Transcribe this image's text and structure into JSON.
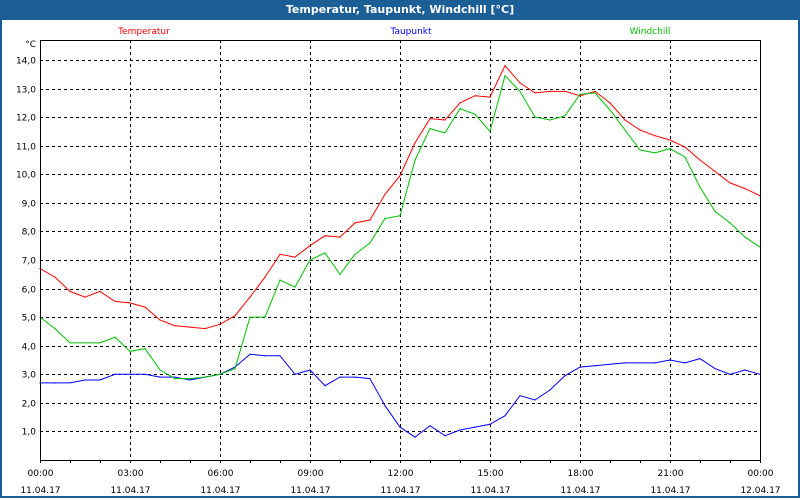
{
  "window": {
    "title": "Temperatur, Taupunkt, Windchill [°C]"
  },
  "chart_data": {
    "type": "line",
    "title": "Temperatur, Taupunkt, Windchill [°C]",
    "ylabel": "°C",
    "xlabel": "",
    "ylim": [
      0,
      14.7
    ],
    "xlim_hours": [
      0,
      24
    ],
    "grid": true,
    "legend_placement": "top",
    "y_ticks": [
      1,
      2,
      3,
      4,
      5,
      6,
      7,
      8,
      9,
      10,
      11,
      12,
      13,
      14
    ],
    "y_tick_labels": [
      "1,0",
      "2,0",
      "3,0",
      "4,0",
      "5,0",
      "6,0",
      "7,0",
      "8,0",
      "9,0",
      "10,0",
      "11,0",
      "12,0",
      "13,0",
      "14,0"
    ],
    "x_ticks_hours": [
      0,
      3,
      6,
      9,
      12,
      15,
      18,
      21,
      24
    ],
    "x_tick_labels": [
      {
        "time": "00:00",
        "date": "11.04.17"
      },
      {
        "time": "03:00",
        "date": "11.04.17"
      },
      {
        "time": "06:00",
        "date": "11.04.17"
      },
      {
        "time": "09:00",
        "date": "11.04.17"
      },
      {
        "time": "12:00",
        "date": "11.04.17"
      },
      {
        "time": "15:00",
        "date": "11.04.17"
      },
      {
        "time": "18:00",
        "date": "11.04.17"
      },
      {
        "time": "21:00",
        "date": "11.04.17"
      },
      {
        "time": "00:00",
        "date": "12.04.17"
      }
    ],
    "x_hours": [
      0,
      0.5,
      1,
      1.5,
      2,
      2.5,
      3,
      3.5,
      4,
      4.5,
      5,
      5.5,
      6,
      6.5,
      7,
      7.5,
      8,
      8.5,
      9,
      9.5,
      10,
      10.5,
      11,
      11.5,
      12,
      12.5,
      13,
      13.5,
      14,
      14.5,
      15,
      15.5,
      16,
      16.5,
      17,
      17.5,
      18,
      18.5,
      19,
      19.5,
      20,
      20.5,
      21,
      21.5,
      22,
      22.5,
      23,
      23.5,
      24
    ],
    "series": [
      {
        "name": "Temperatur",
        "color": "#ff0000",
        "values": [
          6.7,
          6.4,
          5.9,
          5.7,
          5.9,
          5.55,
          5.5,
          5.35,
          4.9,
          4.7,
          4.65,
          4.6,
          4.75,
          5.05,
          5.7,
          6.4,
          7.2,
          7.1,
          7.5,
          7.85,
          7.8,
          8.3,
          8.4,
          9.3,
          9.95,
          11.1,
          11.95,
          11.9,
          12.5,
          12.75,
          12.7,
          13.8,
          13.2,
          12.85,
          12.9,
          12.9,
          12.75,
          12.9,
          12.5,
          11.9,
          11.55,
          11.35,
          11.2,
          10.95,
          10.5,
          10.1,
          9.7,
          9.5,
          9.25
        ]
      },
      {
        "name": "Taupunkt",
        "color": "#0000ff",
        "values": [
          2.7,
          2.7,
          2.7,
          2.8,
          2.8,
          3.0,
          3.0,
          3.0,
          2.9,
          2.9,
          2.8,
          2.9,
          3.0,
          3.25,
          3.7,
          3.65,
          3.65,
          3.0,
          3.15,
          2.6,
          2.9,
          2.9,
          2.85,
          1.9,
          1.15,
          0.8,
          1.2,
          0.85,
          1.05,
          1.15,
          1.25,
          1.55,
          2.25,
          2.1,
          2.45,
          2.95,
          3.25,
          3.3,
          3.35,
          3.4,
          3.4,
          3.4,
          3.5,
          3.4,
          3.55,
          3.2,
          3.0,
          3.15,
          3.0
        ]
      },
      {
        "name": "Windchill",
        "color": "#00c000",
        "values": [
          5.0,
          4.6,
          4.1,
          4.1,
          4.1,
          4.3,
          3.8,
          3.9,
          3.15,
          2.85,
          2.85,
          2.9,
          3.0,
          3.2,
          5.0,
          5.0,
          6.3,
          6.05,
          7.0,
          7.25,
          6.5,
          7.2,
          7.6,
          8.45,
          8.55,
          10.5,
          11.6,
          11.45,
          12.3,
          12.1,
          11.5,
          13.45,
          12.9,
          12.0,
          11.9,
          12.05,
          12.8,
          12.85,
          12.25,
          11.55,
          10.85,
          10.75,
          10.9,
          10.6,
          9.55,
          8.7,
          8.3,
          7.8,
          7.45
        ]
      }
    ]
  }
}
